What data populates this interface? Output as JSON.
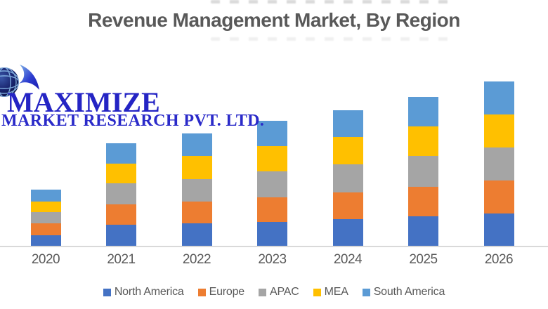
{
  "title": "Revenue Management Market, By Region",
  "logo": {
    "line1": "MAXIMIZE",
    "line2": "MARKET RESEARCH PVT. LTD.",
    "text_color": "#2424C4"
  },
  "chart_data": {
    "type": "bar",
    "stacked": true,
    "title": "Revenue Management Market, By Region",
    "categories": [
      "2020",
      "2021",
      "2022",
      "2023",
      "2024",
      "2025",
      "2026"
    ],
    "series": [
      {
        "name": "North America",
        "color": "#4472C4",
        "values": [
          15,
          30,
          32,
          34,
          38,
          42,
          46
        ]
      },
      {
        "name": "Europe",
        "color": "#ED7D31",
        "values": [
          17,
          29,
          31,
          35,
          38,
          42,
          47
        ]
      },
      {
        "name": "APAC",
        "color": "#A5A5A5",
        "values": [
          16,
          30,
          32,
          37,
          40,
          44,
          47
        ]
      },
      {
        "name": "MEA",
        "color": "#FFC000",
        "values": [
          15,
          28,
          33,
          36,
          39,
          42,
          47
        ]
      },
      {
        "name": "South America",
        "color": "#5B9BD5",
        "values": [
          17,
          29,
          32,
          36,
          38,
          42,
          47
        ]
      }
    ],
    "stack_totals": [
      80,
      146,
      160,
      178,
      193,
      212,
      234
    ],
    "xlabel": "",
    "ylabel": "",
    "ylim": [
      0,
      250
    ],
    "y_axis_visible": false,
    "grid": false,
    "legend_position": "bottom",
    "axis_line_color": "#D9D9D9",
    "label_color": "#595959"
  }
}
